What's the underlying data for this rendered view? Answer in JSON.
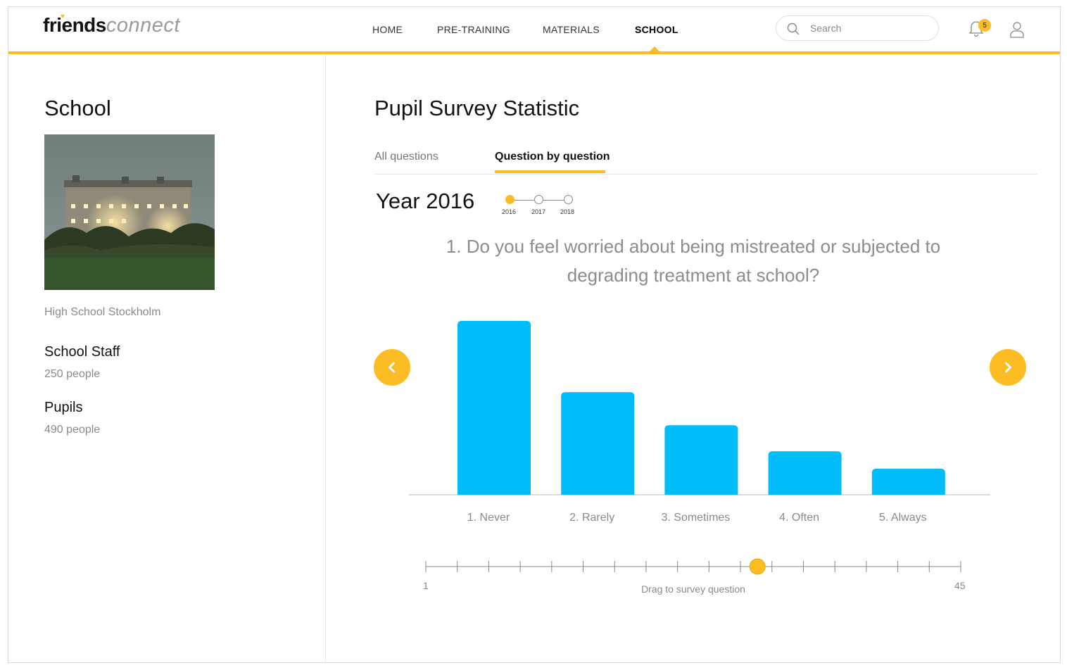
{
  "logo": {
    "bold": "friends",
    "light": "connect"
  },
  "nav": {
    "items": [
      {
        "label": "HOME"
      },
      {
        "label": "PRE-TRAINING"
      },
      {
        "label": "MATERIALS"
      },
      {
        "label": "SCHOOL"
      }
    ],
    "active": "SCHOOL"
  },
  "search": {
    "placeholder": "Search"
  },
  "notifications": {
    "count": "5"
  },
  "sidebar": {
    "title": "School",
    "school_name": "High School Stockholm",
    "stats": [
      {
        "label": "School Staff",
        "value": "250 people"
      },
      {
        "label": "Pupils",
        "value": "490 people"
      }
    ]
  },
  "main": {
    "title": "Pupil Survey Statistic",
    "tabs": [
      {
        "label": "All questions"
      },
      {
        "label": "Question by question"
      }
    ],
    "active_tab": "Question by question",
    "year_label": "Year 2016",
    "years": [
      "2016",
      "2017",
      "2018"
    ],
    "selected_year": "2016",
    "question": "1. Do you feel worried about being mistreated or subjected to degrading treatment at school?"
  },
  "chart_data": {
    "type": "bar",
    "categories": [
      "1. Never",
      "2. Rarely",
      "3. Sometimes",
      "4. Often",
      "5. Always"
    ],
    "values": [
      100,
      59,
      40,
      25,
      15
    ],
    "color": "#00bcf9"
  },
  "scrubber": {
    "min": "1",
    "max": "45",
    "caption": "Drag to survey question",
    "position_fraction": 0.62
  },
  "colors": {
    "accent": "#fbbd23",
    "bar": "#00bcf9"
  }
}
